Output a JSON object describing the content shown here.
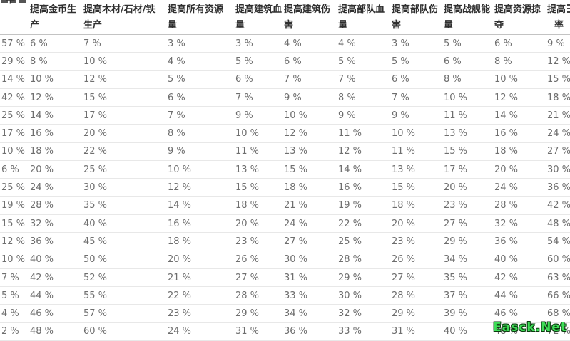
{
  "page": {
    "background": "#ffffff"
  },
  "watermark": {
    "text": "Easck.Net",
    "color": "#3edd57"
  },
  "table": {
    "unit_suffix": " %",
    "header_text_color": "#2f2f2f",
    "value_text_color": "#6e6e6e",
    "row_border_color": "#e8e8e8",
    "header_border_color": "#c3c3c3",
    "headers": [
      {
        "label": "率",
        "line1": "",
        "line2": "率"
      },
      {
        "label": "提高金币生产",
        "line1": "提高金币生",
        "line2": "产"
      },
      {
        "label": "提高木材/石材/铁生产",
        "line1": "提高木材/石材/铁",
        "line2": "生产"
      },
      {
        "label": "提高所有资源量",
        "line1": "提高所有资源",
        "line2": "量"
      },
      {
        "label": "提高建筑血量",
        "line1": "提高建筑血",
        "line2": "量"
      },
      {
        "label": "提高建筑伤害",
        "line1": "提高建筑伤",
        "line2": "害"
      },
      {
        "label": "提高部队血量",
        "line1": "提高部队血",
        "line2": "量"
      },
      {
        "label": "提高部队伤害",
        "line1": "提高部队伤",
        "line2": "害"
      },
      {
        "label": "提高战舰能量",
        "line1": "提高战舰能",
        "line2": "量"
      },
      {
        "label": "提高资源掠夺",
        "line1": "提高资源掠",
        "line2": "夺"
      },
      {
        "label": "提高率",
        "line1": "提高",
        "line2": "率"
      }
    ],
    "rows": [
      [
        57,
        6,
        7,
        3,
        3,
        4,
        4,
        3,
        5,
        6,
        9
      ],
      [
        29,
        8,
        10,
        4,
        5,
        6,
        5,
        5,
        6,
        8,
        12
      ],
      [
        14,
        10,
        12,
        5,
        6,
        7,
        7,
        6,
        8,
        10,
        15
      ],
      [
        42,
        12,
        15,
        6,
        7,
        9,
        8,
        7,
        10,
        12,
        18
      ],
      [
        25,
        14,
        17,
        7,
        9,
        10,
        9,
        9,
        11,
        14,
        21
      ],
      [
        17,
        16,
        20,
        8,
        10,
        12,
        11,
        10,
        13,
        16,
        24
      ],
      [
        10,
        18,
        22,
        9,
        11,
        13,
        12,
        11,
        15,
        18,
        27
      ],
      [
        6,
        20,
        25,
        10,
        13,
        15,
        14,
        13,
        17,
        20,
        30
      ],
      [
        25,
        24,
        30,
        12,
        15,
        18,
        16,
        15,
        20,
        24,
        36
      ],
      [
        19,
        28,
        35,
        14,
        18,
        21,
        19,
        18,
        23,
        28,
        42
      ],
      [
        15,
        32,
        40,
        16,
        20,
        24,
        22,
        20,
        27,
        32,
        48
      ],
      [
        12,
        36,
        45,
        18,
        23,
        27,
        25,
        23,
        29,
        36,
        54
      ],
      [
        10,
        40,
        50,
        20,
        26,
        30,
        28,
        26,
        34,
        40,
        60
      ],
      [
        7,
        42,
        52,
        21,
        27,
        31,
        29,
        27,
        35,
        42,
        63
      ],
      [
        5,
        44,
        55,
        22,
        28,
        33,
        30,
        28,
        37,
        44,
        66
      ],
      [
        4,
        46,
        57,
        23,
        29,
        34,
        32,
        29,
        39,
        46,
        68
      ],
      [
        2,
        48,
        60,
        24,
        31,
        36,
        33,
        31,
        40,
        48,
        72
      ]
    ]
  }
}
